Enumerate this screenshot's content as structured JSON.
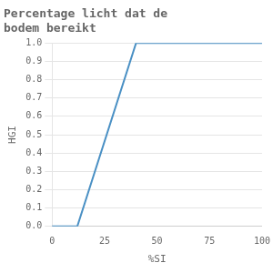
{
  "chart_data": {
    "type": "line",
    "title": "Percentage licht dat de\nbodem bereikt",
    "xlabel": "%SI",
    "ylabel": "HGI",
    "x": [
      0,
      12,
      40,
      100
    ],
    "values": [
      0.0,
      0.0,
      1.0,
      1.0
    ],
    "color": "#4a90c4",
    "xlim": [
      0,
      100
    ],
    "ylim": [
      0.0,
      1.0
    ],
    "xticks": [
      0,
      25,
      50,
      75,
      100
    ],
    "yticks": [
      {
        "value": 0.0,
        "label": "0.0"
      },
      0.1,
      0.2,
      0.3,
      0.4,
      0.5,
      0.6,
      0.7,
      0.8,
      0.9,
      {
        "value": 1.0,
        "label": "1.0"
      }
    ],
    "grid": "y"
  }
}
